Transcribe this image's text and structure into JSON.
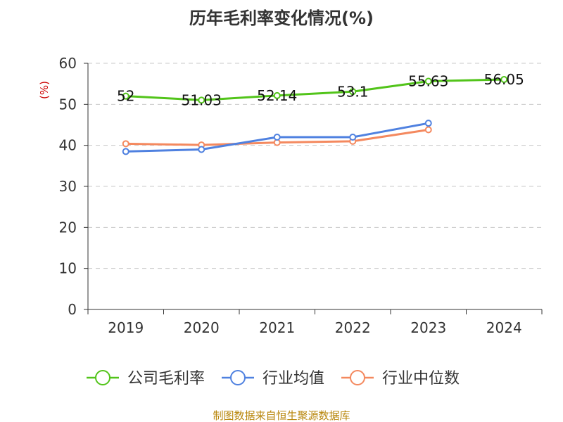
{
  "chart_data": {
    "type": "line",
    "title": "历年毛利率变化情况(%)",
    "ylabel": "(%)",
    "categories": [
      "2019",
      "2020",
      "2021",
      "2022",
      "2023",
      "2024"
    ],
    "ylim": [
      0,
      60
    ],
    "yticks": [
      0,
      10,
      20,
      30,
      40,
      50,
      60
    ],
    "grid": true,
    "legend_position": "bottom",
    "series": [
      {
        "name": "公司毛利率",
        "color": "#52c41a",
        "values": [
          52,
          51.03,
          52.14,
          53.1,
          55.63,
          56.05
        ],
        "labels": [
          "52",
          "51.03",
          "52.14",
          "53.1",
          "55.63",
          "56.05"
        ]
      },
      {
        "name": "行业均值",
        "color": "#4f81e0",
        "values": [
          38.5,
          39,
          42,
          42,
          45.4,
          null
        ]
      },
      {
        "name": "行业中位数",
        "color": "#f4895f",
        "values": [
          40.4,
          40.1,
          40.7,
          41,
          43.8,
          null
        ]
      }
    ]
  },
  "source": "制图数据来自恒生聚源数据库"
}
